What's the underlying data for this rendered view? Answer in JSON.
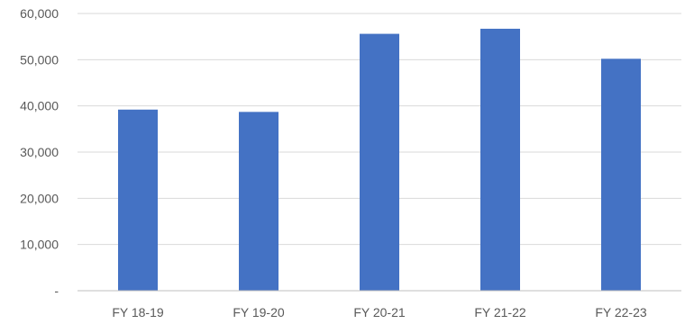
{
  "chart_data": {
    "type": "bar",
    "title": "",
    "xlabel": "",
    "ylabel": "",
    "categories": [
      "FY 18-19",
      "FY 19-20",
      "FY 20-21",
      "FY 21-22",
      "FY 22-23"
    ],
    "values": [
      39200,
      38700,
      55600,
      56700,
      50200
    ],
    "ylim": [
      0,
      60000
    ],
    "y_ticks": [
      {
        "value": 0,
        "label": "-"
      },
      {
        "value": 10000,
        "label": "10,000"
      },
      {
        "value": 20000,
        "label": "20,000"
      },
      {
        "value": 30000,
        "label": "30,000"
      },
      {
        "value": 40000,
        "label": "40,000"
      },
      {
        "value": 50000,
        "label": "50,000"
      },
      {
        "value": 60000,
        "label": "60,000"
      }
    ],
    "grid": true,
    "legend": "none",
    "bar_color": "#4472c4"
  }
}
